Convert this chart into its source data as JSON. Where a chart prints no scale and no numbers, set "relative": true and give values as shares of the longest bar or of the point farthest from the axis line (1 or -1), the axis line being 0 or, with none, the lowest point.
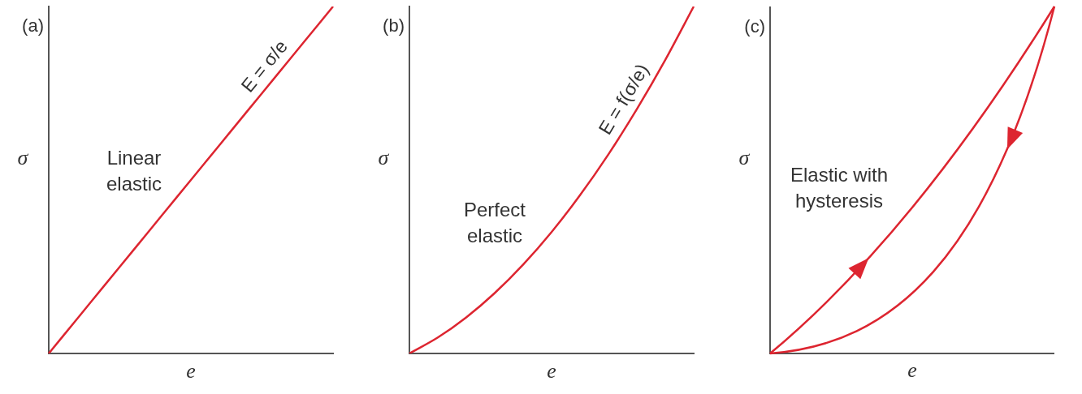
{
  "chart_data": [
    {
      "type": "line",
      "title": "(a)",
      "xlabel": "e",
      "ylabel": "σ",
      "relative": true,
      "marker": "none",
      "categories": [
        null,
        null,
        null,
        null,
        null,
        null,
        null,
        null,
        null,
        null,
        null
      ],
      "series": [
        {
          "color": "#dd2530",
          "values": [
            0,
            0.1,
            0.2,
            0.3,
            0.4,
            0.5,
            0.6,
            0.7,
            0.8,
            0.9,
            1
          ]
        }
      ],
      "annotations": [
        "E = σ/e",
        "Linear\nelastic"
      ]
    },
    {
      "type": "line",
      "title": "(b)",
      "xlabel": "e",
      "ylabel": "σ",
      "relative": true,
      "marker": "none",
      "categories": [
        null,
        null,
        null,
        null,
        null,
        null,
        null,
        null,
        null,
        null,
        null
      ],
      "series": [
        {
          "color": "#dd2530",
          "values": [
            0,
            0.046,
            0.104,
            0.174,
            0.256,
            0.35,
            0.456,
            0.574,
            0.704,
            0.846,
            1
          ]
        }
      ],
      "annotations": [
        "E = f(σ/e)",
        "Perfect\nelastic"
      ]
    },
    {
      "type": "other",
      "title": "(c)",
      "xlabel": "e",
      "ylabel": "σ",
      "annotations": [
        "Elastic with\nhysteresis"
      ]
    }
  ]
}
